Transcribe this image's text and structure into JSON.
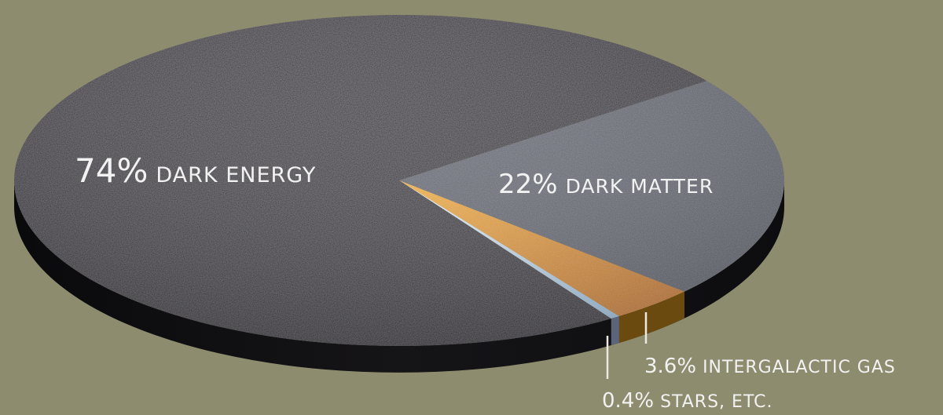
{
  "chart_data": {
    "type": "pie",
    "slices": [
      {
        "key": "dark_energy",
        "pct_label": "74%",
        "name": "DARK ENERGY",
        "value": 74,
        "color": "#2b2730"
      },
      {
        "key": "dark_matter",
        "pct_label": "22%",
        "name": "DARK MATTER",
        "value": 22,
        "color": "#5e6270"
      },
      {
        "key": "gas",
        "pct_label": "3.6%",
        "name": "INTERGALACTIC GAS",
        "value": 3.6,
        "color": "#d28a17"
      },
      {
        "key": "stars",
        "pct_label": "0.4%",
        "name": "STARS, ETC.",
        "value": 0.4,
        "color": "#c8dceb"
      }
    ]
  }
}
